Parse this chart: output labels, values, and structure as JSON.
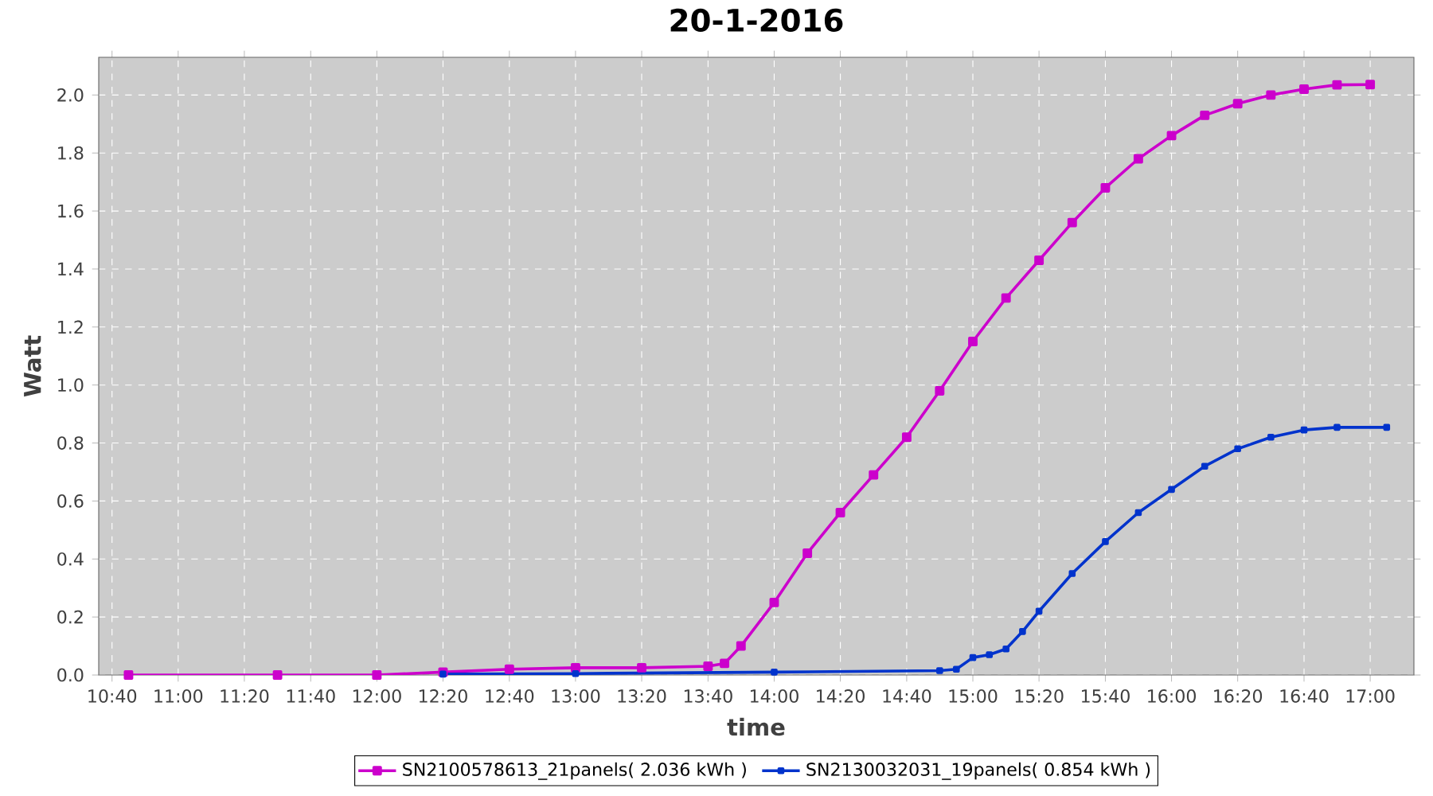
{
  "chart_data": {
    "type": "line",
    "title": "20-1-2016",
    "xlabel": "time",
    "ylabel": "Watt",
    "xlim": [
      10.6,
      17.22
    ],
    "ylim": [
      0,
      2.13
    ],
    "xticks": [
      {
        "value": 10.667,
        "label": "10:40"
      },
      {
        "value": 11,
        "label": "11:00"
      },
      {
        "value": 11.333,
        "label": "11:20"
      },
      {
        "value": 11.667,
        "label": "11:40"
      },
      {
        "value": 12,
        "label": "12:00"
      },
      {
        "value": 12.333,
        "label": "12:20"
      },
      {
        "value": 12.667,
        "label": "12:40"
      },
      {
        "value": 13,
        "label": "13:00"
      },
      {
        "value": 13.333,
        "label": "13:20"
      },
      {
        "value": 13.667,
        "label": "13:40"
      },
      {
        "value": 14,
        "label": "14:00"
      },
      {
        "value": 14.333,
        "label": "14:20"
      },
      {
        "value": 14.667,
        "label": "14:40"
      },
      {
        "value": 15,
        "label": "15:00"
      },
      {
        "value": 15.333,
        "label": "15:20"
      },
      {
        "value": 15.667,
        "label": "15:40"
      },
      {
        "value": 16,
        "label": "16:00"
      },
      {
        "value": 16.333,
        "label": "16:20"
      },
      {
        "value": 16.667,
        "label": "16:40"
      },
      {
        "value": 17,
        "label": "17:00"
      }
    ],
    "yticks": [
      {
        "value": 0,
        "label": "0.0"
      },
      {
        "value": 0.2,
        "label": "0.2"
      },
      {
        "value": 0.4,
        "label": "0.4"
      },
      {
        "value": 0.6,
        "label": "0.6"
      },
      {
        "value": 0.8,
        "label": "0.8"
      },
      {
        "value": 1,
        "label": "1.0"
      },
      {
        "value": 1.2,
        "label": "1.2"
      },
      {
        "value": 1.4,
        "label": "1.4"
      },
      {
        "value": 1.6,
        "label": "1.6"
      },
      {
        "value": 1.8,
        "label": "1.8"
      },
      {
        "value": 2,
        "label": "2.0"
      }
    ],
    "grid": true,
    "legend": "bottom",
    "marker": "square",
    "line_style": "solid",
    "series": [
      {
        "name": "SN2100578613_21panels( 2.036 kWh )",
        "color": "#cc00cc",
        "x": [
          10.75,
          11.5,
          12,
          12.333,
          12.667,
          13,
          13.333,
          13.667,
          13.75,
          13.833,
          14,
          14.167,
          14.333,
          14.5,
          14.667,
          14.833,
          15,
          15.167,
          15.333,
          15.5,
          15.667,
          15.833,
          16,
          16.167,
          16.333,
          16.5,
          16.667,
          16.833,
          17
        ],
        "values": [
          0,
          0,
          0,
          0.01,
          0.02,
          0.025,
          0.025,
          0.03,
          0.04,
          0.1,
          0.25,
          0.42,
          0.56,
          0.69,
          0.82,
          0.98,
          1.15,
          1.3,
          1.43,
          1.56,
          1.68,
          1.78,
          1.86,
          1.93,
          1.97,
          2,
          2.02,
          2.035,
          2.036
        ]
      },
      {
        "name": "SN2130032031_19panels( 0.854 kWh )",
        "color": "#0033cc",
        "x": [
          12.333,
          13,
          14,
          14.833,
          14.917,
          15,
          15.083,
          15.167,
          15.25,
          15.333,
          15.5,
          15.667,
          15.833,
          16,
          16.167,
          16.333,
          16.5,
          16.667,
          16.833,
          17.083
        ],
        "values": [
          0.003,
          0.005,
          0.01,
          0.015,
          0.02,
          0.06,
          0.07,
          0.09,
          0.15,
          0.22,
          0.35,
          0.46,
          0.56,
          0.64,
          0.72,
          0.78,
          0.82,
          0.845,
          0.854,
          0.854
        ]
      }
    ]
  }
}
